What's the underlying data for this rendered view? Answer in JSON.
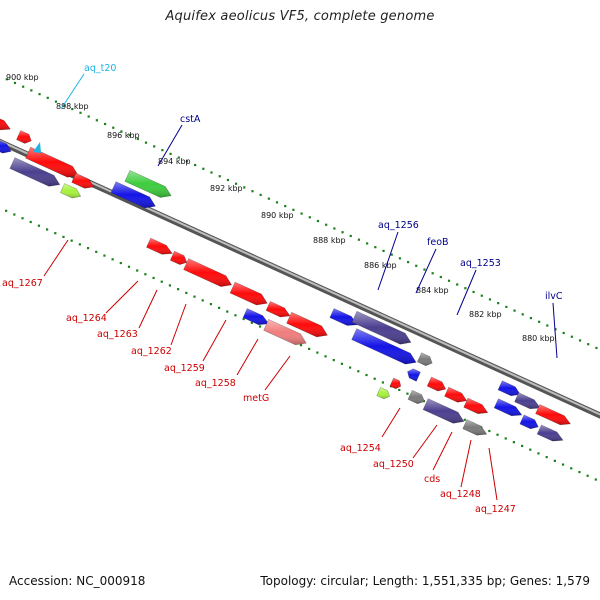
{
  "title": "Aquifex aeolicus VF5, complete genome",
  "footer": {
    "accession": "Accession: NC_000918",
    "summary": "Topology: circular; Length: 1,551,335 bp; Genes: 1,579"
  },
  "colors": {
    "red": "#ff0a0a",
    "blue": "#1414e6",
    "green": "#3dcc3d",
    "purple": "#4b3f8f",
    "lime": "#a6f23c",
    "gray": "#7a7a7a",
    "light_red": "#f07d7d",
    "label_red": "#cc0000",
    "label_blue": "#00008b",
    "label_cyan": "#1eb4e6",
    "tick_green": "#1a801a"
  },
  "ticks": [
    "900 kbp",
    "898 kbp",
    "896 kbp",
    "894 kbp",
    "892 kbp",
    "890 kbp",
    "888 kbp",
    "886 kbp",
    "884 kbp",
    "882 kbp",
    "880 kbp"
  ],
  "labels_top": [
    {
      "text": "aq_t20",
      "color": "cyan"
    },
    {
      "text": "cstA",
      "color": "blue"
    },
    {
      "text": "aq_1256",
      "color": "blue"
    },
    {
      "text": "feoB",
      "color": "blue"
    },
    {
      "text": "aq_1253",
      "color": "blue"
    },
    {
      "text": "ilvC",
      "color": "blue"
    }
  ],
  "labels_bottom": [
    {
      "text": "aq_1267"
    },
    {
      "text": "aq_1264"
    },
    {
      "text": "aq_1263"
    },
    {
      "text": "aq_1262"
    },
    {
      "text": "aq_1259"
    },
    {
      "text": "aq_1258"
    },
    {
      "text": "metG"
    },
    {
      "text": "aq_1254"
    },
    {
      "text": "aq_1250"
    },
    {
      "text": "cds"
    },
    {
      "text": "aq_1248"
    },
    {
      "text": "aq_1247"
    }
  ]
}
